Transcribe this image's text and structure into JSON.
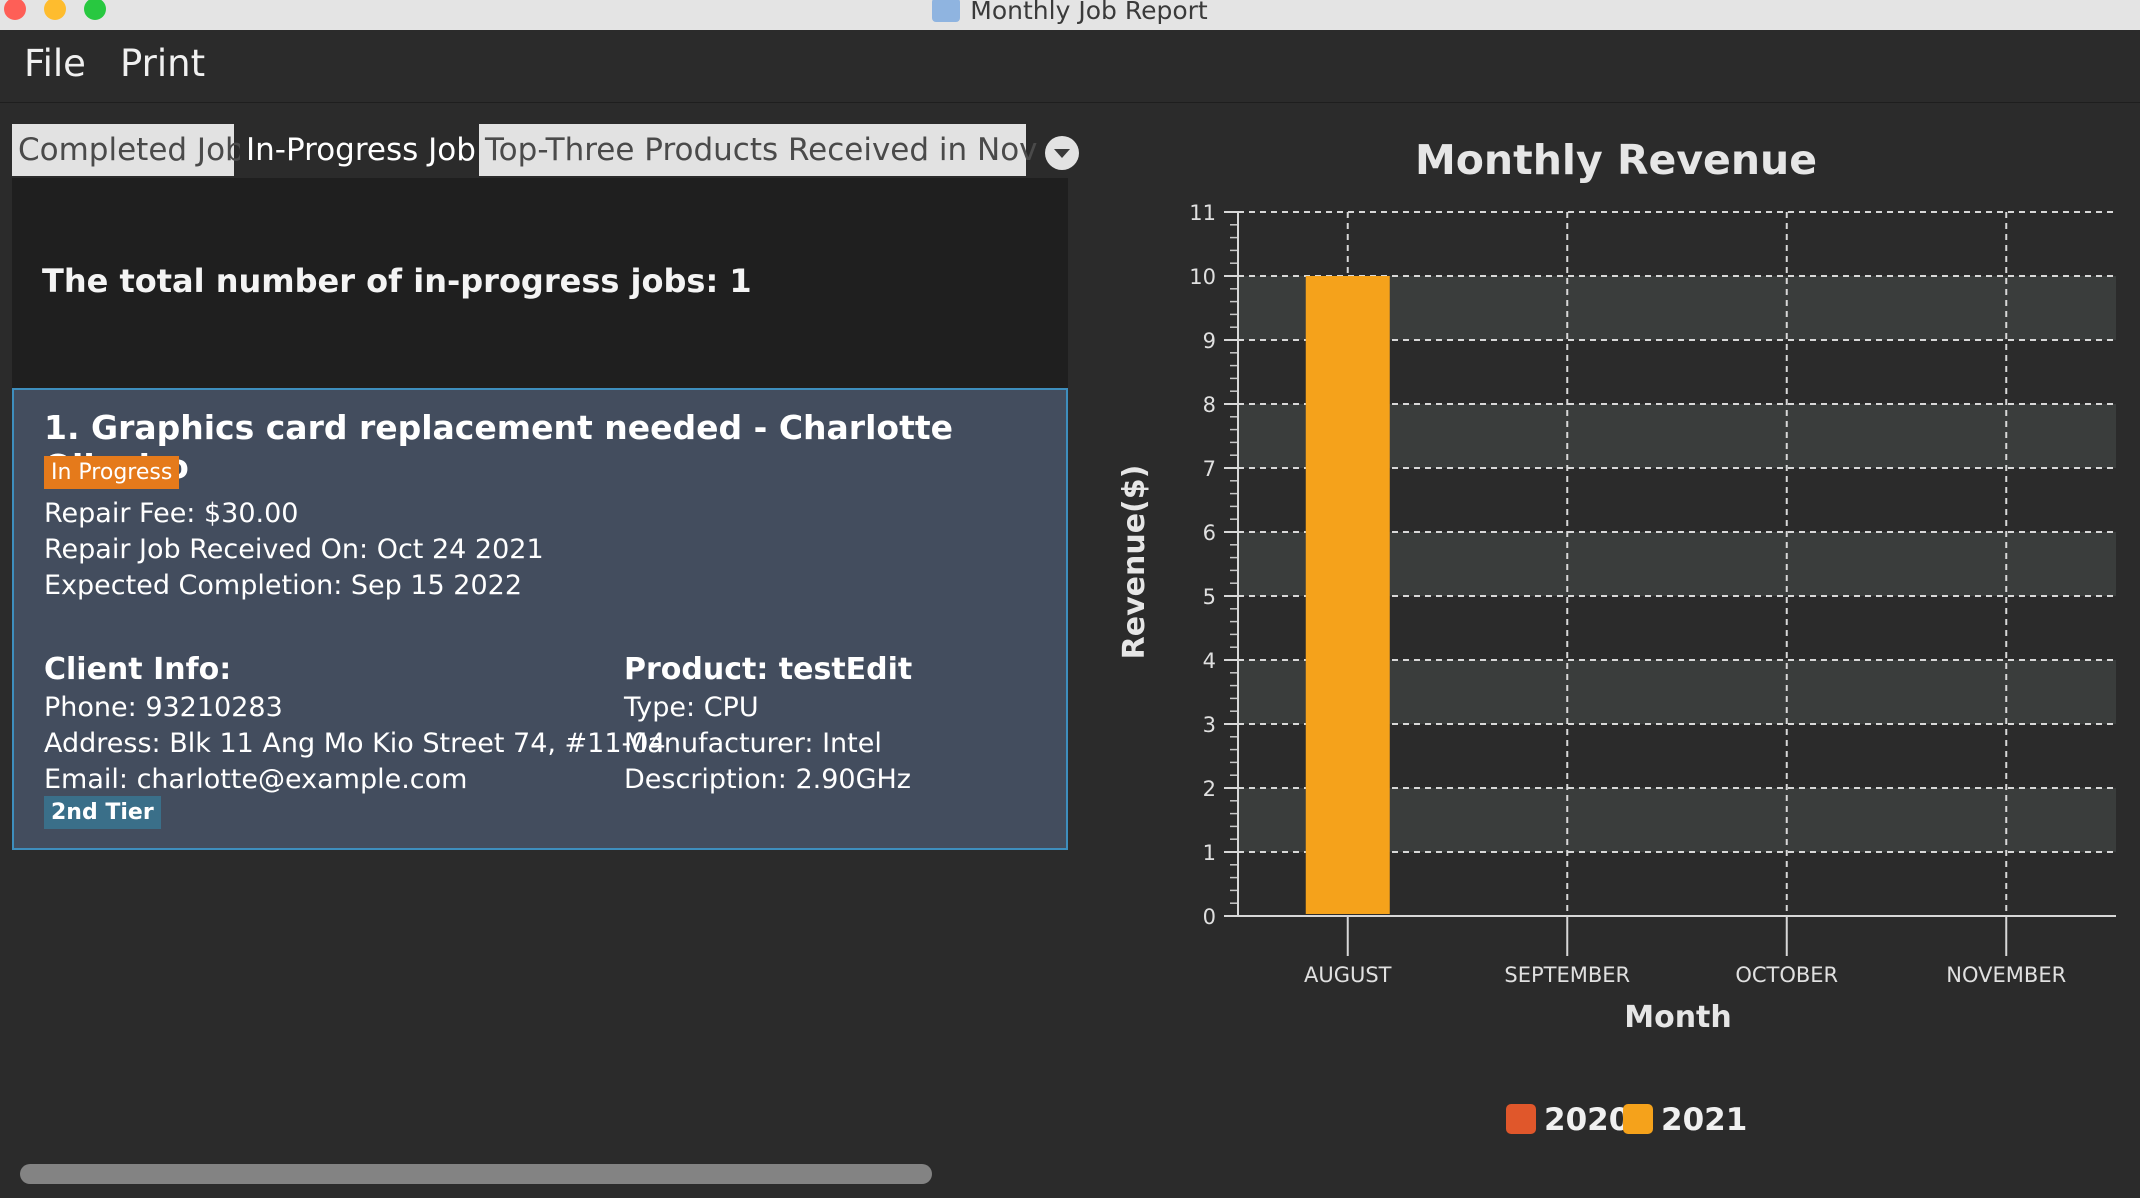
{
  "window": {
    "title": "Monthly Job Report"
  },
  "menu": {
    "file": "File",
    "print": "Print"
  },
  "tabs": [
    {
      "label": "Completed Job"
    },
    {
      "label": "In-Progress Job"
    },
    {
      "label": "Top-Three Products Received in Nov"
    }
  ],
  "summary": {
    "text": "The total number of in-progress jobs: 1"
  },
  "job": {
    "title": "1. Graphics card replacement needed - Charlotte Oliveiro",
    "status": "In Progress",
    "fee": "Repair Fee: $30.00",
    "received": "Repair Job Received On: Oct 24 2021",
    "expected": "Expected Completion: Sep 15 2022",
    "client_heading": "Client Info:",
    "phone": "Phone: 93210283",
    "address": "Address: Blk 11 Ang Mo Kio Street 74, #11-04",
    "email": "Email: charlotte@example.com",
    "tier": "2nd Tier",
    "product_heading": "Product: testEdit",
    "type": "Type: CPU",
    "manufacturer": "Manufacturer: Intel",
    "description": "Description: 2.90GHz"
  },
  "colors": {
    "series_2020": "#e0572b",
    "series_2021": "#f5a21b",
    "status_badge": "#e57a1b",
    "tier_badge": "#3a6f89"
  },
  "chart_data": {
    "type": "bar",
    "title": "Monthly Revenue",
    "xlabel": "Month",
    "ylabel": "Revenue($)",
    "categories": [
      "AUGUST",
      "SEPTEMBER",
      "OCTOBER",
      "NOVEMBER"
    ],
    "series": [
      {
        "name": "2020",
        "values": [
          0,
          0,
          0,
          0
        ]
      },
      {
        "name": "2021",
        "values": [
          10,
          0,
          0,
          0
        ]
      }
    ],
    "ylim": [
      0,
      11
    ],
    "yticks": [
      "0",
      "1",
      "2",
      "3",
      "4",
      "5",
      "6",
      "7",
      "8",
      "9",
      "10",
      "11"
    ],
    "grid": true,
    "legend": "bottom"
  }
}
